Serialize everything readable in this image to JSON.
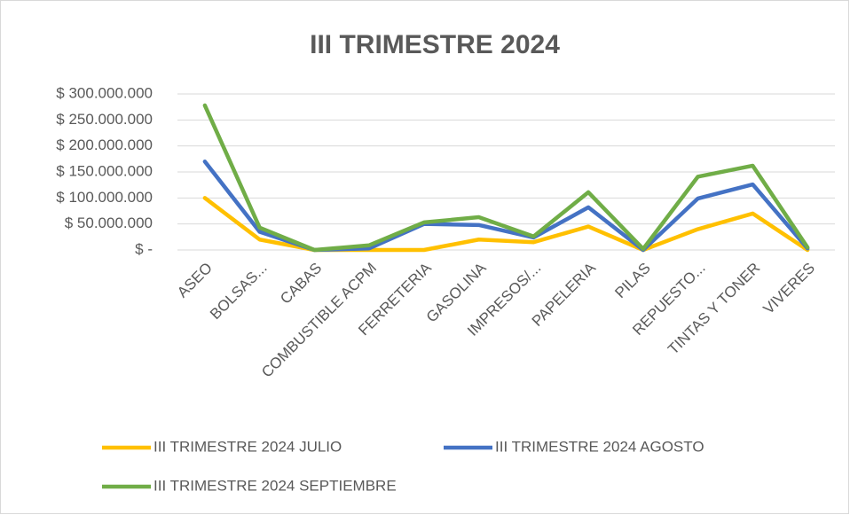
{
  "chart_data": {
    "type": "line",
    "stacked": true,
    "title": "III TRIMESTRE 2024",
    "categories": [
      "ASEO",
      "BOLSAS...",
      "CABAS",
      "COMBUSTIBLE ACPM",
      "FERRETERIA",
      "GASOLINA",
      "IMPRESOS/...",
      "PAPELERIA",
      "PILAS",
      "REPUESTO...",
      "TINTAS Y TONER",
      "VIVERES"
    ],
    "series": [
      {
        "name": "III TRIMESTRE 2024 JULIO",
        "color": "#ffc000",
        "values": [
          100000000,
          20000000,
          0,
          0,
          0,
          20000000,
          15000000,
          45000000,
          0,
          40000000,
          70000000,
          0
        ]
      },
      {
        "name": "III TRIMESTRE 2024 AGOSTO",
        "color": "#4472c4",
        "values": [
          70000000,
          15000000,
          0,
          3000000,
          50000000,
          28000000,
          9000000,
          37000000,
          0,
          59000000,
          56000000,
          3000000
        ]
      },
      {
        "name": "III TRIMESTRE 2024 SEPTIEMBRE",
        "color": "#70ad47",
        "values": [
          108000000,
          8000000,
          0,
          6000000,
          3000000,
          15000000,
          2000000,
          29000000,
          2000000,
          42000000,
          36000000,
          2000000
        ]
      }
    ],
    "ylim": [
      0,
      300000000
    ],
    "yticks": [
      {
        "value": 0,
        "label": "$ -"
      },
      {
        "value": 50000000,
        "label": "$ 50.000.000"
      },
      {
        "value": 100000000,
        "label": "$ 100.000.000"
      },
      {
        "value": 150000000,
        "label": "$ 150.000.000"
      },
      {
        "value": 200000000,
        "label": "$ 200.000.000"
      },
      {
        "value": 250000000,
        "label": "$ 250.000.000"
      },
      {
        "value": 300000000,
        "label": "$ 300.000.000"
      }
    ],
    "grid": true
  }
}
